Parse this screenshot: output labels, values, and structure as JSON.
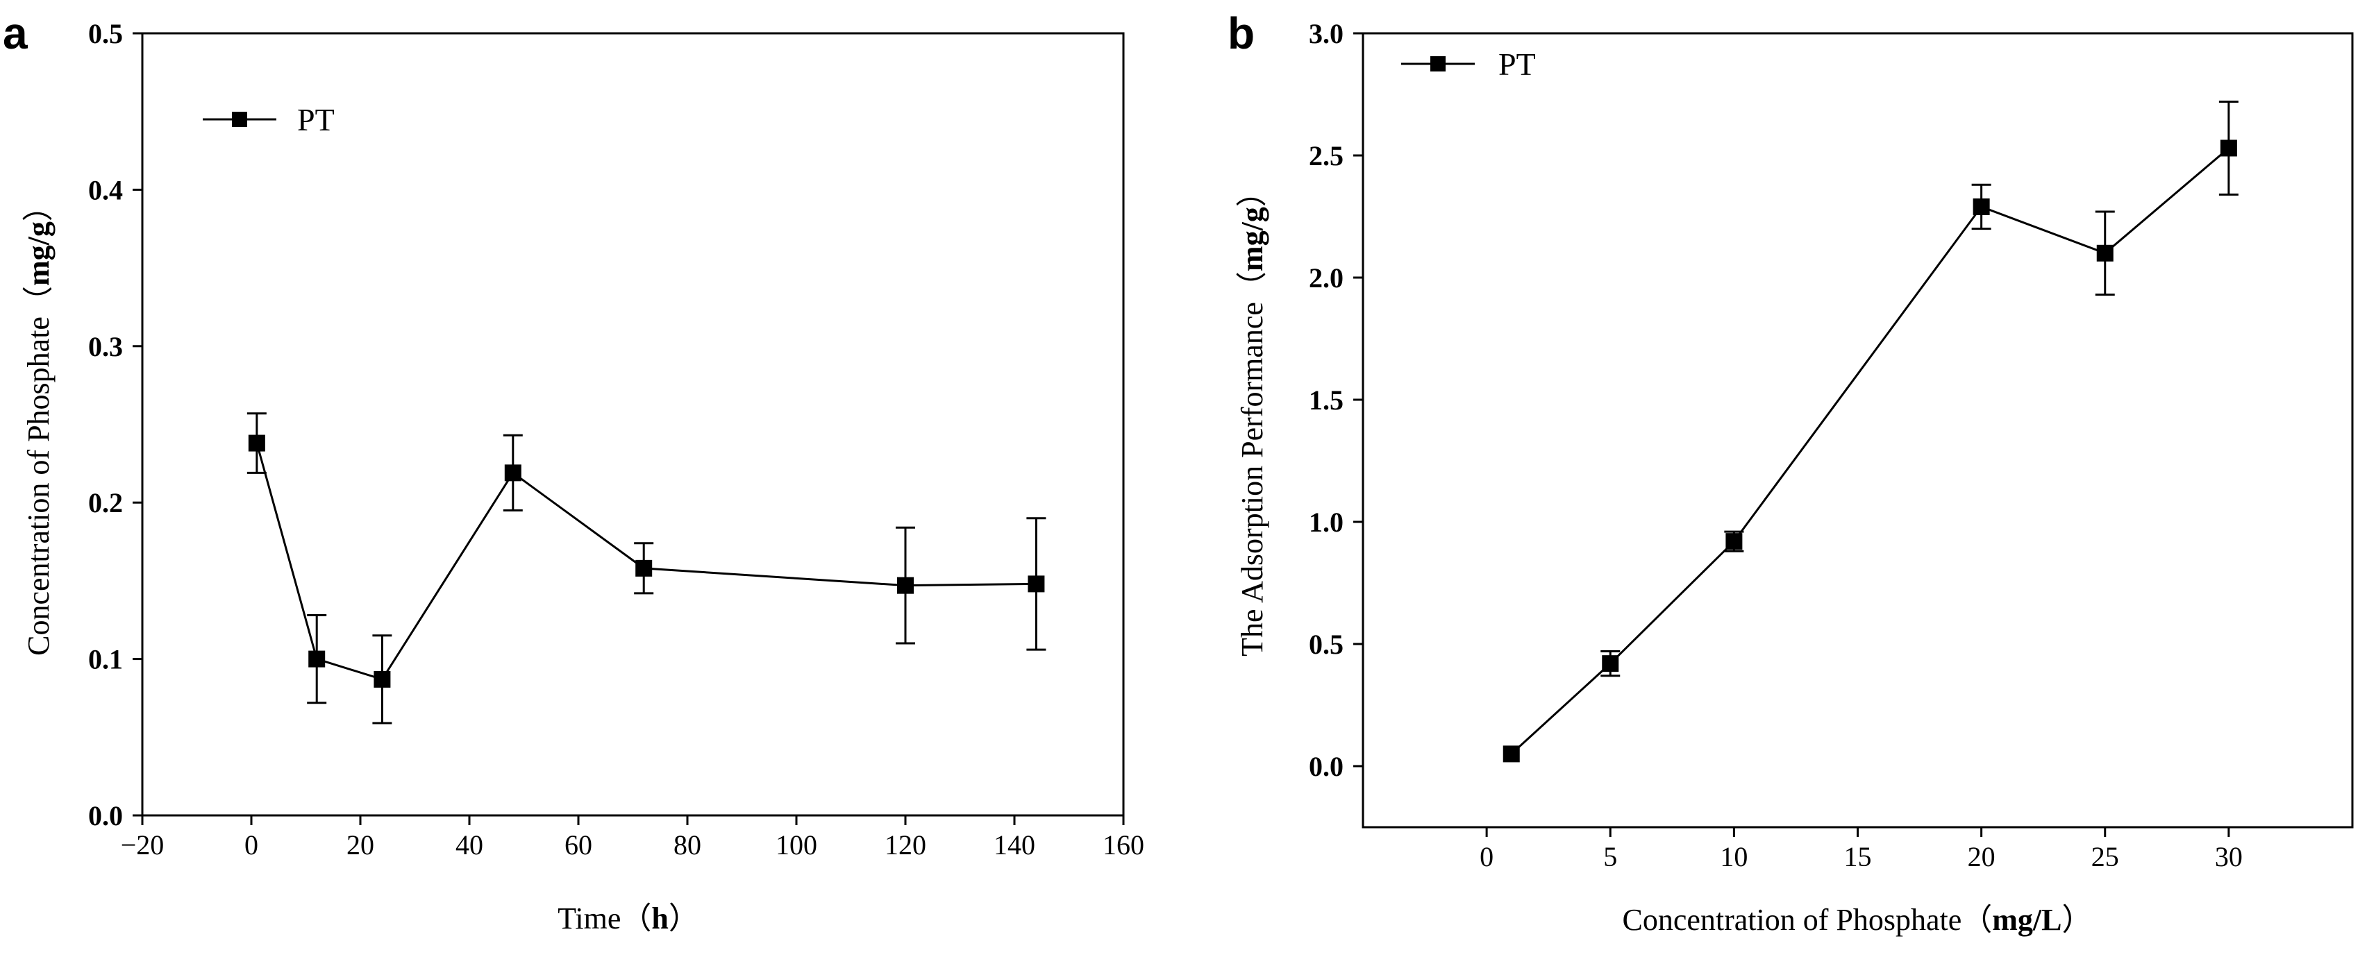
{
  "chart_data": [
    {
      "panel_label": "a",
      "type": "line",
      "title": "",
      "xlabel_prefix": "Time（",
      "xlabel_unit": "h",
      "xlabel_suffix": "）",
      "ylabel_prefix": "Concentration of Phosphate（",
      "ylabel_unit": "mg/g",
      "ylabel_suffix": "）",
      "xlim": [
        -20,
        160
      ],
      "ylim": [
        0,
        0.5
      ],
      "xticks": [
        -20,
        0,
        20,
        40,
        60,
        80,
        100,
        120,
        140,
        160
      ],
      "xtick_labels": [
        "−20",
        "0",
        "20",
        "40",
        "60",
        "80",
        "100",
        "120",
        "140",
        "160"
      ],
      "yticks": [
        0.0,
        0.1,
        0.2,
        0.3,
        0.4,
        0.5
      ],
      "ytick_labels": [
        "0.0",
        "0.1",
        "0.2",
        "0.3",
        "0.4",
        "0.5"
      ],
      "legend": {
        "entries": [
          "PT"
        ],
        "placement": "top-left"
      },
      "series": [
        {
          "name": "PT",
          "x": [
            1,
            12,
            24,
            48,
            72,
            120,
            144
          ],
          "y": [
            0.238,
            0.1,
            0.087,
            0.219,
            0.158,
            0.147,
            0.148
          ],
          "err": [
            0.019,
            0.028,
            0.028,
            0.024,
            0.016,
            0.037,
            0.042
          ]
        }
      ]
    },
    {
      "panel_label": "b",
      "type": "line",
      "title": "",
      "xlabel_prefix": "Concentration of Phosphate（",
      "xlabel_unit": "mg/L",
      "xlabel_suffix": "）",
      "ylabel_prefix": "The Adsorption Performance（",
      "ylabel_unit": "mg/g",
      "ylabel_suffix": "）",
      "xlim": [
        -5,
        35
      ],
      "ylim": [
        -0.25,
        3.0
      ],
      "xticks": [
        0,
        5,
        10,
        15,
        20,
        25,
        30
      ],
      "xtick_labels": [
        "0",
        "5",
        "10",
        "15",
        "20",
        "25",
        "30"
      ],
      "yticks": [
        0.0,
        0.5,
        1.0,
        1.5,
        2.0,
        2.5,
        3.0
      ],
      "ytick_labels": [
        "0.0",
        "0.5",
        "1.0",
        "1.5",
        "2.0",
        "2.5",
        "3.0"
      ],
      "legend": {
        "entries": [
          "PT"
        ],
        "placement": "top-left"
      },
      "series": [
        {
          "name": "PT",
          "x": [
            1,
            5,
            10,
            20,
            25,
            30
          ],
          "y": [
            0.05,
            0.42,
            0.92,
            2.29,
            2.1,
            2.53
          ],
          "err": [
            0.0,
            0.05,
            0.04,
            0.09,
            0.17,
            0.19
          ]
        }
      ]
    }
  ]
}
